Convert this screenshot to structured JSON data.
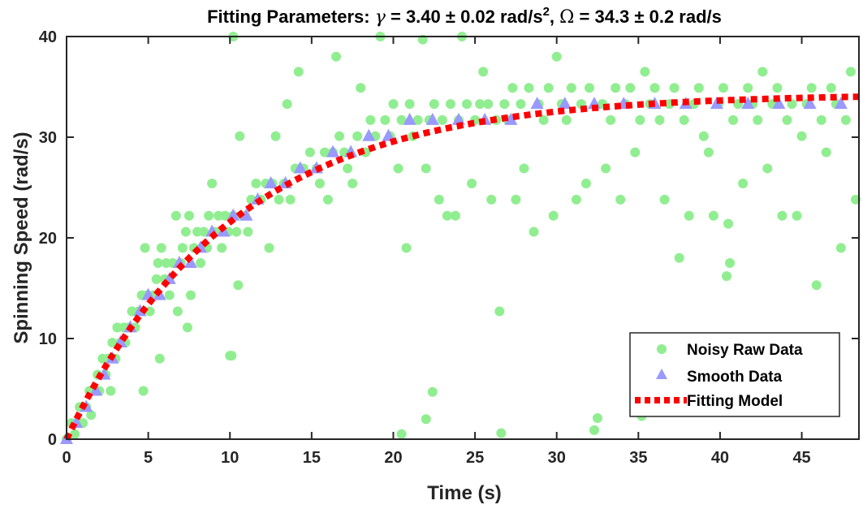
{
  "chart_data": {
    "type": "scatter",
    "title_parts": {
      "prefix": "Fitting Parameters: ",
      "gamma_symbol": "γ",
      "gamma_value": " = 3.40 ± 0.02 rad/s",
      "gamma_exp": "2",
      "separator": ", ",
      "omega_symbol": "Ω",
      "omega_value": " = 34.3 ± 0.2 rad/s"
    },
    "xlabel": "Time (s)",
    "ylabel": "Spinning Speed (rad/s)",
    "xlim": [
      0,
      48.5
    ],
    "ylim": [
      0,
      40
    ],
    "xticks": [
      0,
      5,
      10,
      15,
      20,
      25,
      30,
      35,
      40,
      45
    ],
    "yticks": [
      0,
      10,
      20,
      30,
      40
    ],
    "grid": false,
    "legend_position": "bottom-right",
    "colors": {
      "raw": "#90EE90",
      "smooth": "#9999FF",
      "fit": "#FF0000"
    },
    "fit_model": {
      "gamma": 3.4,
      "omega": 34.3
    },
    "series": [
      {
        "name": "Noisy Raw Data",
        "marker": "circle",
        "points": [
          [
            0,
            0
          ],
          [
            0.3,
            1.6
          ],
          [
            0.5,
            0.5
          ],
          [
            0.8,
            3.2
          ],
          [
            1,
            1.6
          ],
          [
            1.2,
            3.2
          ],
          [
            1.4,
            4.8
          ],
          [
            1.5,
            2.4
          ],
          [
            1.7,
            4.8
          ],
          [
            1.9,
            6.4
          ],
          [
            2,
            4.8
          ],
          [
            2.2,
            8
          ],
          [
            2.4,
            6.4
          ],
          [
            2.5,
            8
          ],
          [
            2.7,
            4.8
          ],
          [
            2.8,
            9.6
          ],
          [
            3,
            8
          ],
          [
            3.1,
            11.1
          ],
          [
            3.3,
            9.6
          ],
          [
            3.5,
            11.1
          ],
          [
            3.6,
            9.6
          ],
          [
            3.8,
            11.1
          ],
          [
            4,
            12.7
          ],
          [
            4.2,
            11.1
          ],
          [
            4.4,
            12.7
          ],
          [
            4.6,
            14.3
          ],
          [
            4.7,
            4.8
          ],
          [
            4.8,
            19
          ],
          [
            4.9,
            14.3
          ],
          [
            5.1,
            12.7
          ],
          [
            5.3,
            14.3
          ],
          [
            5.5,
            15.9
          ],
          [
            5.6,
            17.5
          ],
          [
            5.7,
            8
          ],
          [
            5.8,
            19
          ],
          [
            6,
            15.9
          ],
          [
            6.1,
            17.5
          ],
          [
            6.3,
            14.3
          ],
          [
            6.5,
            17.5
          ],
          [
            6.7,
            22.2
          ],
          [
            6.8,
            12.7
          ],
          [
            7,
            17.5
          ],
          [
            7.1,
            19
          ],
          [
            7.3,
            20.6
          ],
          [
            7.4,
            11.1
          ],
          [
            7.5,
            22.2
          ],
          [
            7.6,
            14.3
          ],
          [
            7.8,
            19
          ],
          [
            8,
            20.6
          ],
          [
            8.2,
            17.5
          ],
          [
            8.4,
            20.6
          ],
          [
            8.6,
            19
          ],
          [
            8.7,
            22.2
          ],
          [
            8.9,
            25.4
          ],
          [
            9.1,
            20.6
          ],
          [
            9.3,
            22.2
          ],
          [
            9.5,
            19
          ],
          [
            9.7,
            22.2
          ],
          [
            9.9,
            20.6
          ],
          [
            10,
            8.3
          ],
          [
            10.2,
            22.2
          ],
          [
            10.4,
            20.6
          ],
          [
            10.5,
            15.3
          ],
          [
            10.6,
            30.1
          ],
          [
            10.8,
            22.2
          ],
          [
            11.1,
            20.6
          ],
          [
            11.3,
            23.8
          ],
          [
            11.6,
            25.4
          ],
          [
            11.9,
            23.8
          ],
          [
            12.2,
            25.4
          ],
          [
            12.4,
            19
          ],
          [
            12.6,
            25.4
          ],
          [
            12.8,
            30.1
          ],
          [
            13,
            23.8
          ],
          [
            13.3,
            25.4
          ],
          [
            13.5,
            33.3
          ],
          [
            13.7,
            23.8
          ],
          [
            14,
            26.9
          ],
          [
            14.2,
            36.5
          ],
          [
            14.5,
            26.9
          ],
          [
            14.9,
            28.5
          ],
          [
            15.3,
            26.9
          ],
          [
            15.5,
            25.4
          ],
          [
            15.8,
            28.5
          ],
          [
            16,
            23.8
          ],
          [
            16.3,
            28.5
          ],
          [
            16.5,
            38
          ],
          [
            16.7,
            30.1
          ],
          [
            17,
            28.5
          ],
          [
            17.2,
            26.9
          ],
          [
            17.5,
            25.4
          ],
          [
            17.8,
            30.1
          ],
          [
            18,
            34.9
          ],
          [
            18.3,
            28.5
          ],
          [
            18.6,
            31.7
          ],
          [
            18.9,
            30.1
          ],
          [
            19.2,
            40
          ],
          [
            19.5,
            31.7
          ],
          [
            19.8,
            30.1
          ],
          [
            20,
            33.3
          ],
          [
            20.3,
            26.9
          ],
          [
            20.5,
            31.7
          ],
          [
            20.8,
            19
          ],
          [
            21,
            33.3
          ],
          [
            21.2,
            30.1
          ],
          [
            21.5,
            31.7
          ],
          [
            21.8,
            39.7
          ],
          [
            22,
            26.9
          ],
          [
            22.2,
            31.7
          ],
          [
            22.5,
            33.3
          ],
          [
            22.8,
            23.8
          ],
          [
            23,
            31.7
          ],
          [
            23.3,
            22.2
          ],
          [
            23.5,
            33.3
          ],
          [
            23.8,
            22.2
          ],
          [
            24,
            31.7
          ],
          [
            24.2,
            40
          ],
          [
            24.5,
            33.3
          ],
          [
            24.8,
            25.4
          ],
          [
            25,
            31.7
          ],
          [
            25.3,
            33.3
          ],
          [
            25.5,
            36.5
          ],
          [
            25.8,
            33.3
          ],
          [
            26,
            23.8
          ],
          [
            26.3,
            31.7
          ],
          [
            26.5,
            12.7
          ],
          [
            26.6,
            0.6
          ],
          [
            26.8,
            33.3
          ],
          [
            27,
            31.7
          ],
          [
            27.3,
            34.9
          ],
          [
            27.5,
            23.8
          ],
          [
            27.8,
            33.3
          ],
          [
            28,
            26.9
          ],
          [
            28.3,
            34.9
          ],
          [
            28.6,
            20.6
          ],
          [
            28.9,
            33.3
          ],
          [
            29.2,
            31.7
          ],
          [
            29.5,
            34.9
          ],
          [
            29.8,
            22.2
          ],
          [
            30,
            38
          ],
          [
            30.3,
            33.3
          ],
          [
            30.6,
            31.7
          ],
          [
            30.9,
            34.9
          ],
          [
            31.2,
            23.8
          ],
          [
            31.5,
            33.3
          ],
          [
            31.8,
            25.4
          ],
          [
            32,
            34.9
          ],
          [
            32.3,
            0.9
          ],
          [
            32.5,
            2.1
          ],
          [
            32.8,
            33.3
          ],
          [
            33,
            26.9
          ],
          [
            33.3,
            31.7
          ],
          [
            33.6,
            34.9
          ],
          [
            33.9,
            23.8
          ],
          [
            34.2,
            33.3
          ],
          [
            34.5,
            34.9
          ],
          [
            34.8,
            28.5
          ],
          [
            35.1,
            31.7
          ],
          [
            35.4,
            36.5
          ],
          [
            35.7,
            33.3
          ],
          [
            36,
            34.9
          ],
          [
            36.3,
            31.7
          ],
          [
            36.6,
            23.8
          ],
          [
            36.9,
            33.3
          ],
          [
            37.2,
            34.9
          ],
          [
            37.5,
            18
          ],
          [
            37.8,
            31.7
          ],
          [
            38.1,
            22.2
          ],
          [
            38.4,
            33.3
          ],
          [
            38.7,
            34.9
          ],
          [
            39,
            30.1
          ],
          [
            39.3,
            28.5
          ],
          [
            39.6,
            22.2
          ],
          [
            39.9,
            33.3
          ],
          [
            40.2,
            34.9
          ],
          [
            40.4,
            16.2
          ],
          [
            40.5,
            21.4
          ],
          [
            40.6,
            17.5
          ],
          [
            40.8,
            31.7
          ],
          [
            41.1,
            33.3
          ],
          [
            41.4,
            25.4
          ],
          [
            41.7,
            34.9
          ],
          [
            42,
            33.3
          ],
          [
            42.3,
            31.7
          ],
          [
            42.6,
            36.5
          ],
          [
            42.9,
            26.9
          ],
          [
            43.2,
            33.3
          ],
          [
            43.5,
            34.9
          ],
          [
            43.8,
            22.2
          ],
          [
            44.1,
            31.7
          ],
          [
            44.4,
            33.3
          ],
          [
            44.7,
            22.2
          ],
          [
            45,
            30.1
          ],
          [
            45.3,
            33.3
          ],
          [
            45.6,
            34.9
          ],
          [
            45.9,
            15.3
          ],
          [
            46.2,
            31.7
          ],
          [
            46.5,
            28.5
          ],
          [
            46.8,
            34.9
          ],
          [
            47.1,
            33.3
          ],
          [
            47.4,
            19
          ],
          [
            47.7,
            31.7
          ],
          [
            48,
            36.5
          ],
          [
            48.3,
            23.8
          ],
          [
            20.5,
            0.5
          ],
          [
            22,
            2
          ],
          [
            22.4,
            4.7
          ],
          [
            35.2,
            2.3
          ],
          [
            10.2,
            40
          ],
          [
            10.1,
            8.3
          ]
        ]
      },
      {
        "name": "Smooth Data",
        "marker": "triangle",
        "points": [
          [
            0,
            0
          ],
          [
            0.6,
            1.6
          ],
          [
            1.2,
            3.2
          ],
          [
            1.8,
            4.8
          ],
          [
            2.3,
            6.4
          ],
          [
            2.8,
            8
          ],
          [
            3.3,
            9.6
          ],
          [
            3.9,
            11.1
          ],
          [
            4.5,
            12.7
          ],
          [
            5,
            14.3
          ],
          [
            5.7,
            14.3
          ],
          [
            6.3,
            15.9
          ],
          [
            6.9,
            17.5
          ],
          [
            7.6,
            17.5
          ],
          [
            8.2,
            19
          ],
          [
            8.9,
            20.6
          ],
          [
            9.6,
            20.6
          ],
          [
            10.2,
            22.2
          ],
          [
            11,
            22.2
          ],
          [
            11.7,
            23.8
          ],
          [
            12.5,
            25.4
          ],
          [
            13.4,
            25.4
          ],
          [
            14.3,
            26.9
          ],
          [
            15.3,
            26.9
          ],
          [
            16.3,
            28.5
          ],
          [
            17.4,
            28.5
          ],
          [
            18.5,
            30.1
          ],
          [
            19.7,
            30.1
          ],
          [
            21,
            31.7
          ],
          [
            22.4,
            31.7
          ],
          [
            24,
            31.7
          ],
          [
            25.6,
            31.7
          ],
          [
            27.2,
            31.7
          ],
          [
            28.8,
            33.3
          ],
          [
            30.5,
            33.3
          ],
          [
            32.3,
            33.3
          ],
          [
            34.1,
            33.3
          ],
          [
            36,
            33.3
          ],
          [
            37.9,
            33.3
          ],
          [
            39.8,
            33.3
          ],
          [
            41.7,
            33.3
          ],
          [
            43.6,
            33.3
          ],
          [
            45.5,
            33.3
          ],
          [
            47.4,
            33.3
          ]
        ]
      },
      {
        "name": "Fitting Model",
        "marker": "dotted-line",
        "points": []
      }
    ]
  }
}
